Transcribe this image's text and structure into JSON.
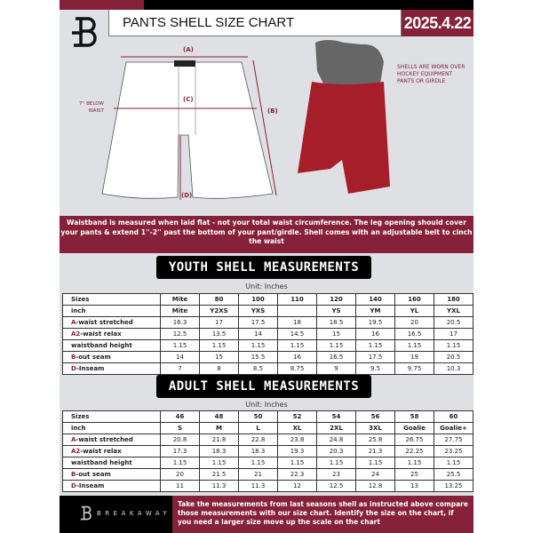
{
  "header": {
    "title": "PANTS SHELL SIZE CHART",
    "date": "2025.4.22"
  },
  "diagram": {
    "label_a": "(A)",
    "label_b": "(B)",
    "label_c": "(C)",
    "label_d": "(D)",
    "below_waist": "7'' BELOW WAIST",
    "note": "SHELLS ARE WORN OVER HOCKEY EQUIPMENT PANTS OR GIRDLE"
  },
  "band_text": "Waistband is measured when laid flat - not your total waist circumference. The leg opening should cover your pants & extend 1''-2'' past the bottom of your pant/girdle. Shell comes with an adjustable belt to cinch the waist",
  "youth": {
    "title": "YOUTH SHELL MEASUREMENTS",
    "unit": "Unit: Inches",
    "rows": [
      {
        "p": "",
        "l": "Sizes",
        "v": [
          "Mite",
          "80",
          "100",
          "110",
          "120",
          "140",
          "160",
          "180"
        ]
      },
      {
        "p": "",
        "l": "inch",
        "v": [
          "Mite",
          "Y2XS",
          "YXS",
          "",
          "YS",
          "YM",
          "YL",
          "YXL"
        ]
      },
      {
        "p": "A",
        "l": "-waist stretched",
        "v": [
          "16.3",
          "17",
          "17.5",
          "18",
          "18.5",
          "19.5",
          "20",
          "20.5"
        ]
      },
      {
        "p": "A2",
        "l": "-waist relax",
        "v": [
          "12.5",
          "13.5",
          "14",
          "14.5",
          "15",
          "16",
          "16.5",
          "17"
        ]
      },
      {
        "p": "",
        "l": "waistband height",
        "v": [
          "1.15",
          "1.15",
          "1.15",
          "1.15",
          "1.15",
          "1.15",
          "1.15",
          "1.15"
        ]
      },
      {
        "p": "B",
        "l": "-out seam",
        "v": [
          "14",
          "15",
          "15.5",
          "16",
          "16.5",
          "17.5",
          "19",
          "20.5"
        ]
      },
      {
        "p": "D",
        "l": "-Inseam",
        "v": [
          "7",
          "8",
          "8.5",
          "8.75",
          "9",
          "9.5",
          "9.75",
          "10.3"
        ]
      }
    ]
  },
  "adult": {
    "title": "ADULT SHELL MEASUREMENTS",
    "unit": "Unit: Inches",
    "rows": [
      {
        "p": "",
        "l": "Sizes",
        "v": [
          "46",
          "48",
          "50",
          "52",
          "54",
          "56",
          "58",
          "60"
        ]
      },
      {
        "p": "",
        "l": "inch",
        "v": [
          "S",
          "M",
          "L",
          "XL",
          "2XL",
          "3XL",
          "Goalie",
          "Goalie+"
        ]
      },
      {
        "p": "A",
        "l": "-waist stretched",
        "v": [
          "20.8",
          "21.8",
          "22.8",
          "23.8",
          "24.8",
          "25.8",
          "26.75",
          "27.75"
        ]
      },
      {
        "p": "A2",
        "l": "-waist relax",
        "v": [
          "17.3",
          "18.3",
          "18.3",
          "19.3",
          "20.3",
          "21.3",
          "22.25",
          "23.25"
        ]
      },
      {
        "p": "",
        "l": "waistband height",
        "v": [
          "1.15",
          "1.15",
          "1.15",
          "1.15",
          "1.15",
          "1.15",
          "1.15",
          "1.15"
        ]
      },
      {
        "p": "B",
        "l": "-out seam",
        "v": [
          "20",
          "21.5",
          "21",
          "22.3",
          "23",
          "24",
          "25",
          "25.5"
        ]
      },
      {
        "p": "D",
        "l": "-Inseam",
        "v": [
          "11",
          "11.3",
          "11.3",
          "12",
          "12.5",
          "12.8",
          "13",
          "13.25"
        ]
      }
    ]
  },
  "footer": {
    "brand": "BREAKAWAY",
    "text": "Take the measurements from last seasons shell as instructed above compare those measurements  with our size chart. Identify the size on the chart, if you need a larger size move up the scale on the chart"
  },
  "colors": {
    "accent": "#86213a",
    "background": "#dfe0e3"
  }
}
